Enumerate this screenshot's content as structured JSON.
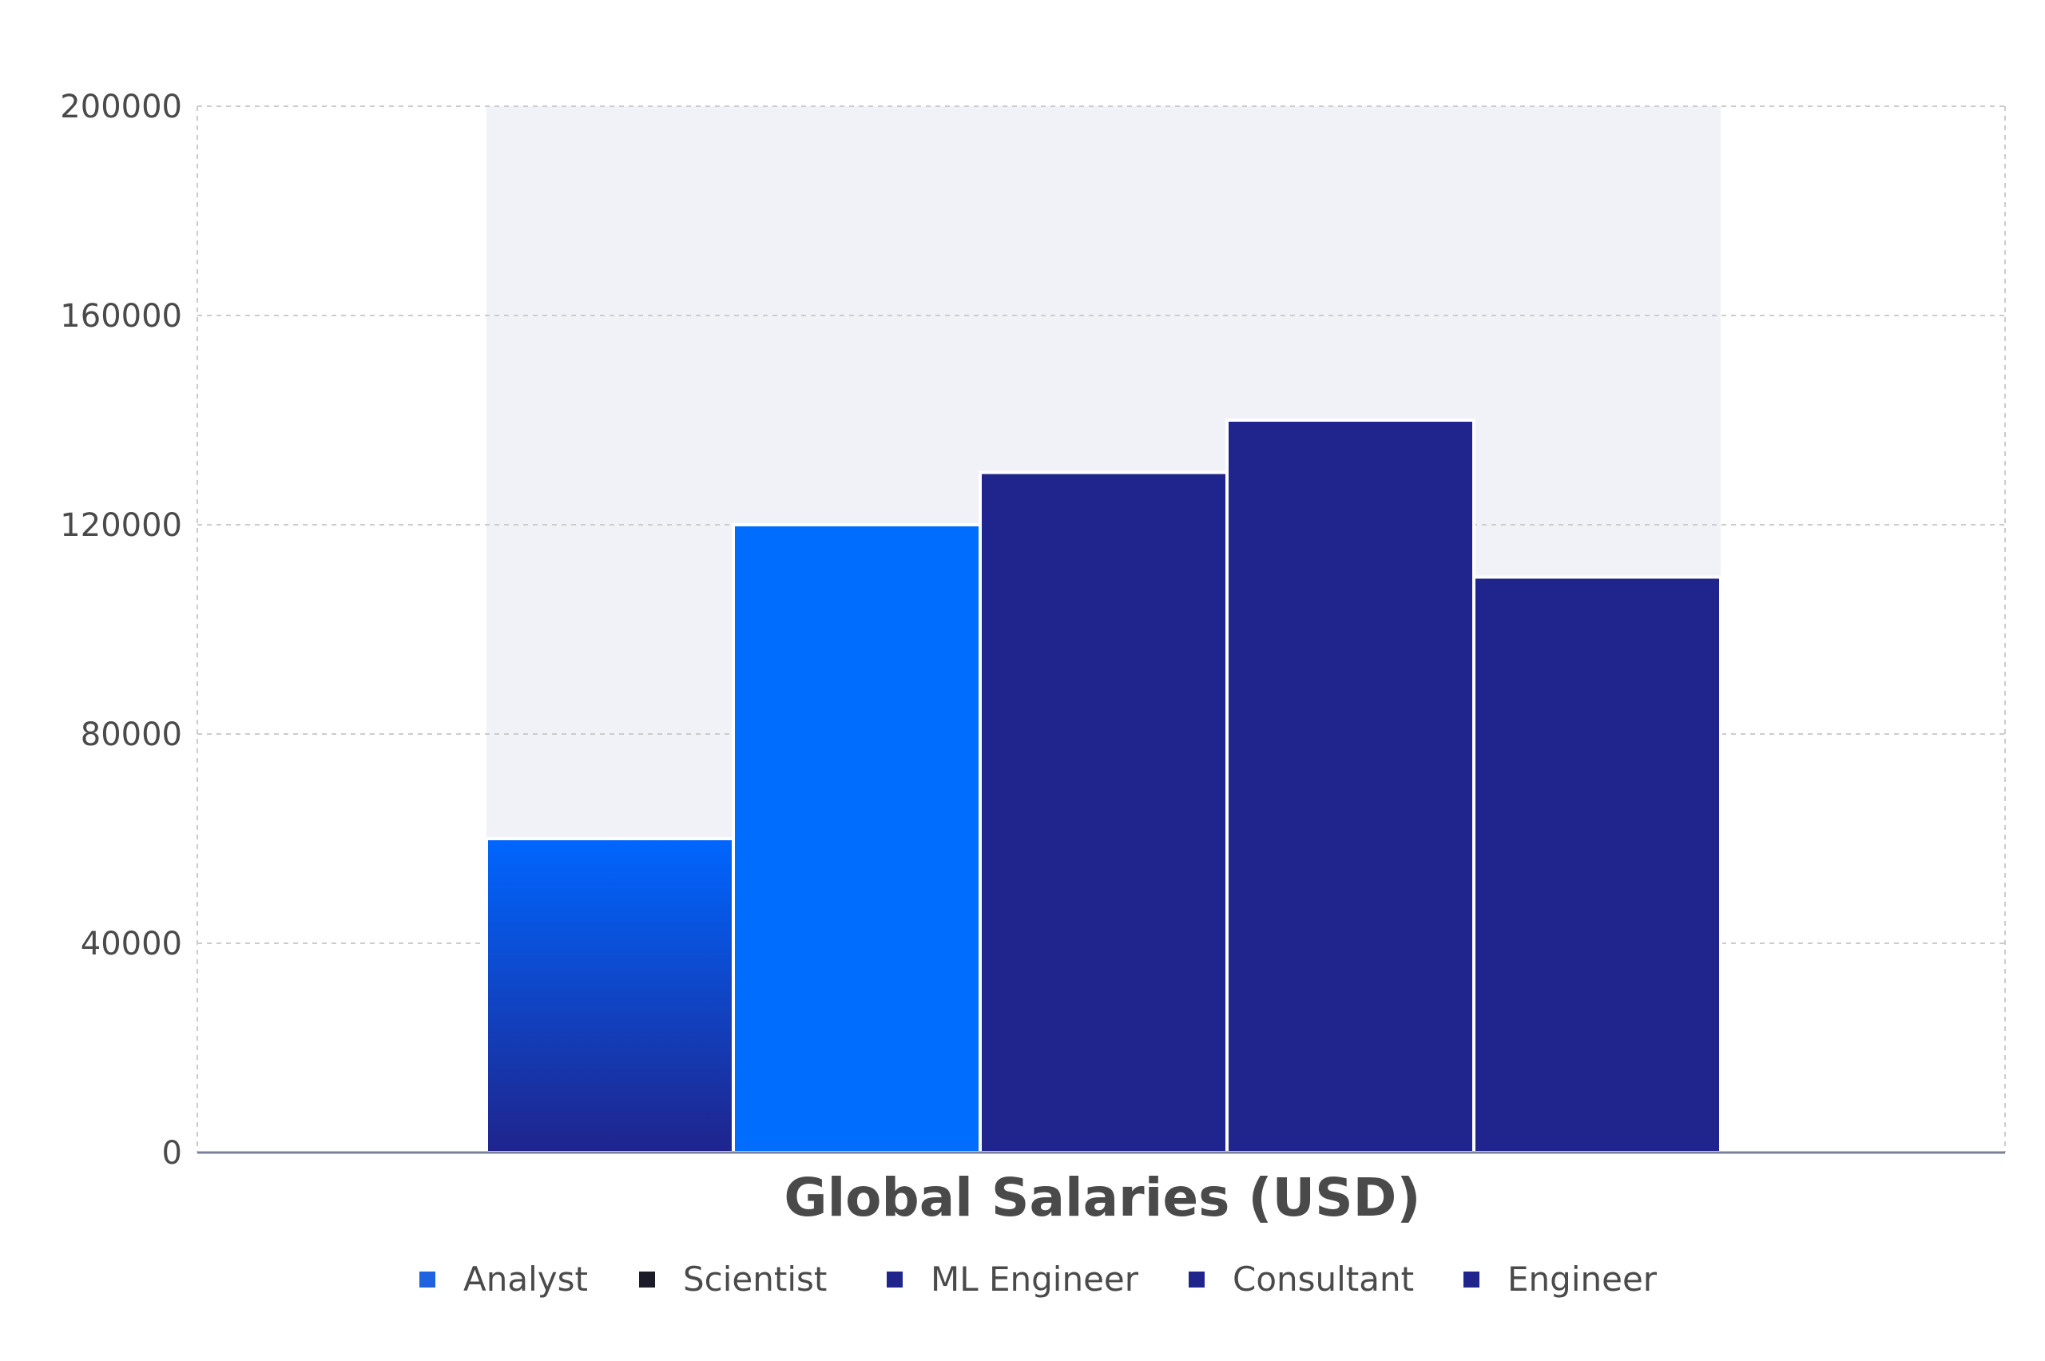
{
  "chart_data": {
    "type": "bar",
    "categories": [
      "Analyst",
      "Scientist",
      "ML Engineer",
      "Consultant",
      "Engineer"
    ],
    "values": [
      60000,
      120000,
      130000,
      140000,
      110000
    ],
    "title": "",
    "xlabel": "Global Salaries (USD)",
    "ylabel": "",
    "ylim": [
      0,
      200000
    ],
    "yticks": [
      0,
      40000,
      80000,
      120000,
      160000,
      200000
    ],
    "ytick_labels": [
      "0",
      "40000",
      "80000",
      "120000",
      "160000",
      "200000"
    ],
    "grid": true,
    "legend_position": "bottom",
    "colors": {
      "Analyst_top": "#0066ff",
      "Analyst_bottom": "#1f248c",
      "Scientist": "#006dfe",
      "ML Engineer": "#20258d",
      "Consultant": "#20258d",
      "Engineer": "#20258d",
      "band": "#f1f2f8",
      "grid": "#cccccc",
      "axis": "#7c7f9a"
    },
    "legend": [
      {
        "label": "Analyst",
        "color": "#1f63e0"
      },
      {
        "label": "Scientist",
        "color": "#1a1c2a"
      },
      {
        "label": "ML Engineer",
        "color": "#20258d"
      },
      {
        "label": "Consultant",
        "color": "#20258d"
      },
      {
        "label": "Engineer",
        "color": "#20258d"
      }
    ]
  }
}
